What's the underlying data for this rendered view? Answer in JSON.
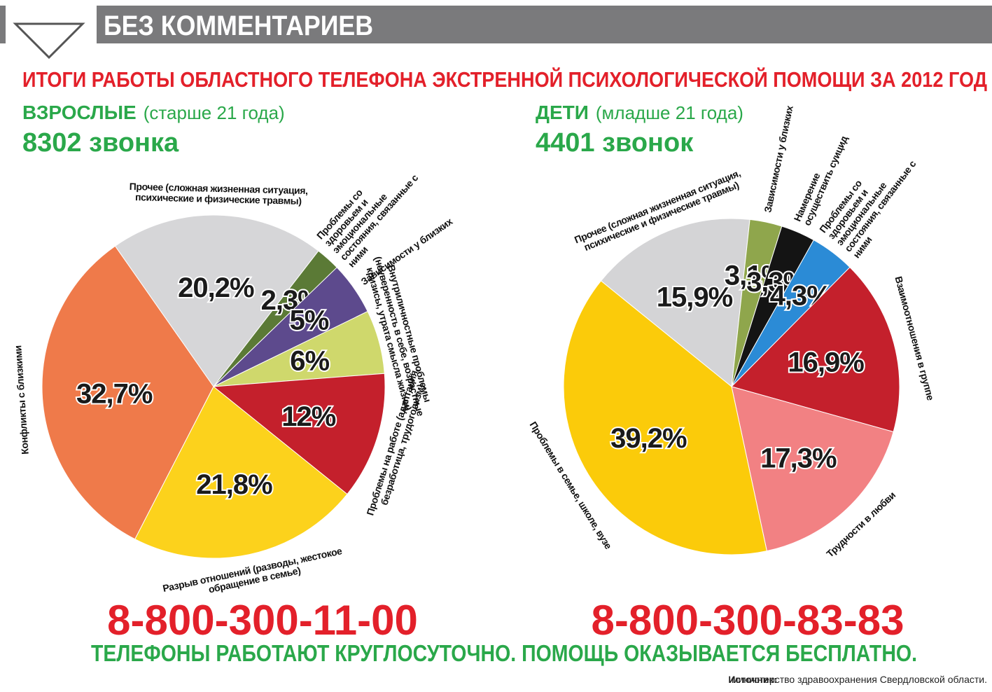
{
  "header": {
    "rubric": "БЕЗ КОММЕНТАРИЕВ",
    "title": "ИТОГИ РАБОТЫ ОБЛАСТНОГО ТЕЛЕФОНА ЭКСТРЕННОЙ ПСИХОЛОГИЧЕСКОЙ ПОМОЩИ ЗА 2012 ГОД"
  },
  "chart_data": [
    {
      "type": "pie",
      "title": "ВЗРОСЛЫЕ",
      "subtitle": "(старше 21 года)",
      "total": "8302 звонка",
      "phone": "8-800-300-11-00",
      "categories": [
        "Прочее (сложная жизненная ситуация, психические и физические травмы)",
        "Проблемы со здоровьем и эмоциональные состояния, связанные с ними",
        "Зависимости у близких",
        "Внутриличностные проблемы (неуверенность в себе, возрастные кризисы, утрата смысла жизни)",
        "Проблемы на работе (адаптация, безработица, трудоголизм)",
        "Разрыв отношений (разводы, жестокое обращение в семье)",
        "Конфликты с близкими"
      ],
      "values": [
        20.2,
        2.3,
        5,
        6,
        12,
        21.8,
        32.7
      ],
      "value_labels": [
        "20,2%",
        "2,3%",
        "5%",
        "6%",
        "12%",
        "21,8%",
        "32,7%"
      ],
      "colors": [
        "#d6d6d8",
        "#5b7a36",
        "#5d4a8d",
        "#cfd86c",
        "#c4202c",
        "#fcd21c",
        "#ef7a4a"
      ]
    },
    {
      "type": "pie",
      "title": "ДЕТИ",
      "subtitle": "(младше 21 года)",
      "total": "4401 звонок",
      "phone": "8-800-300-83-83",
      "categories": [
        "Прочее (сложная жизненная ситуация, психические и физические травмы)",
        "Зависимости у близких",
        "Намерение осуществить суицид",
        "Проблемы со здоровьем и эмоциональные состояния, связанные с ними",
        "Взаимоотношения в группе",
        "Трудности в любви",
        "Проблемы в семье, школе, вузе"
      ],
      "values": [
        15.9,
        3.1,
        3.3,
        4.3,
        16.9,
        17.3,
        39.2
      ],
      "value_labels": [
        "15,9%",
        "3,1%",
        "3,3%",
        "4,3%",
        "16,9%",
        "17,3%",
        "39,2%"
      ],
      "colors": [
        "#d4d4d6",
        "#8fa64c",
        "#141414",
        "#2b8bd6",
        "#c4202c",
        "#f28183",
        "#fbcb0a"
      ]
    }
  ],
  "footer": {
    "note": "ТЕЛЕФОНЫ РАБОТАЮТ КРУГЛОСУТОЧНО. ПОМОЩЬ ОКАЗЫВАЕТСЯ БЕСПЛАТНО.",
    "source_label": "Источник:",
    "source": "министерство здравоохранения Свердловской области."
  }
}
